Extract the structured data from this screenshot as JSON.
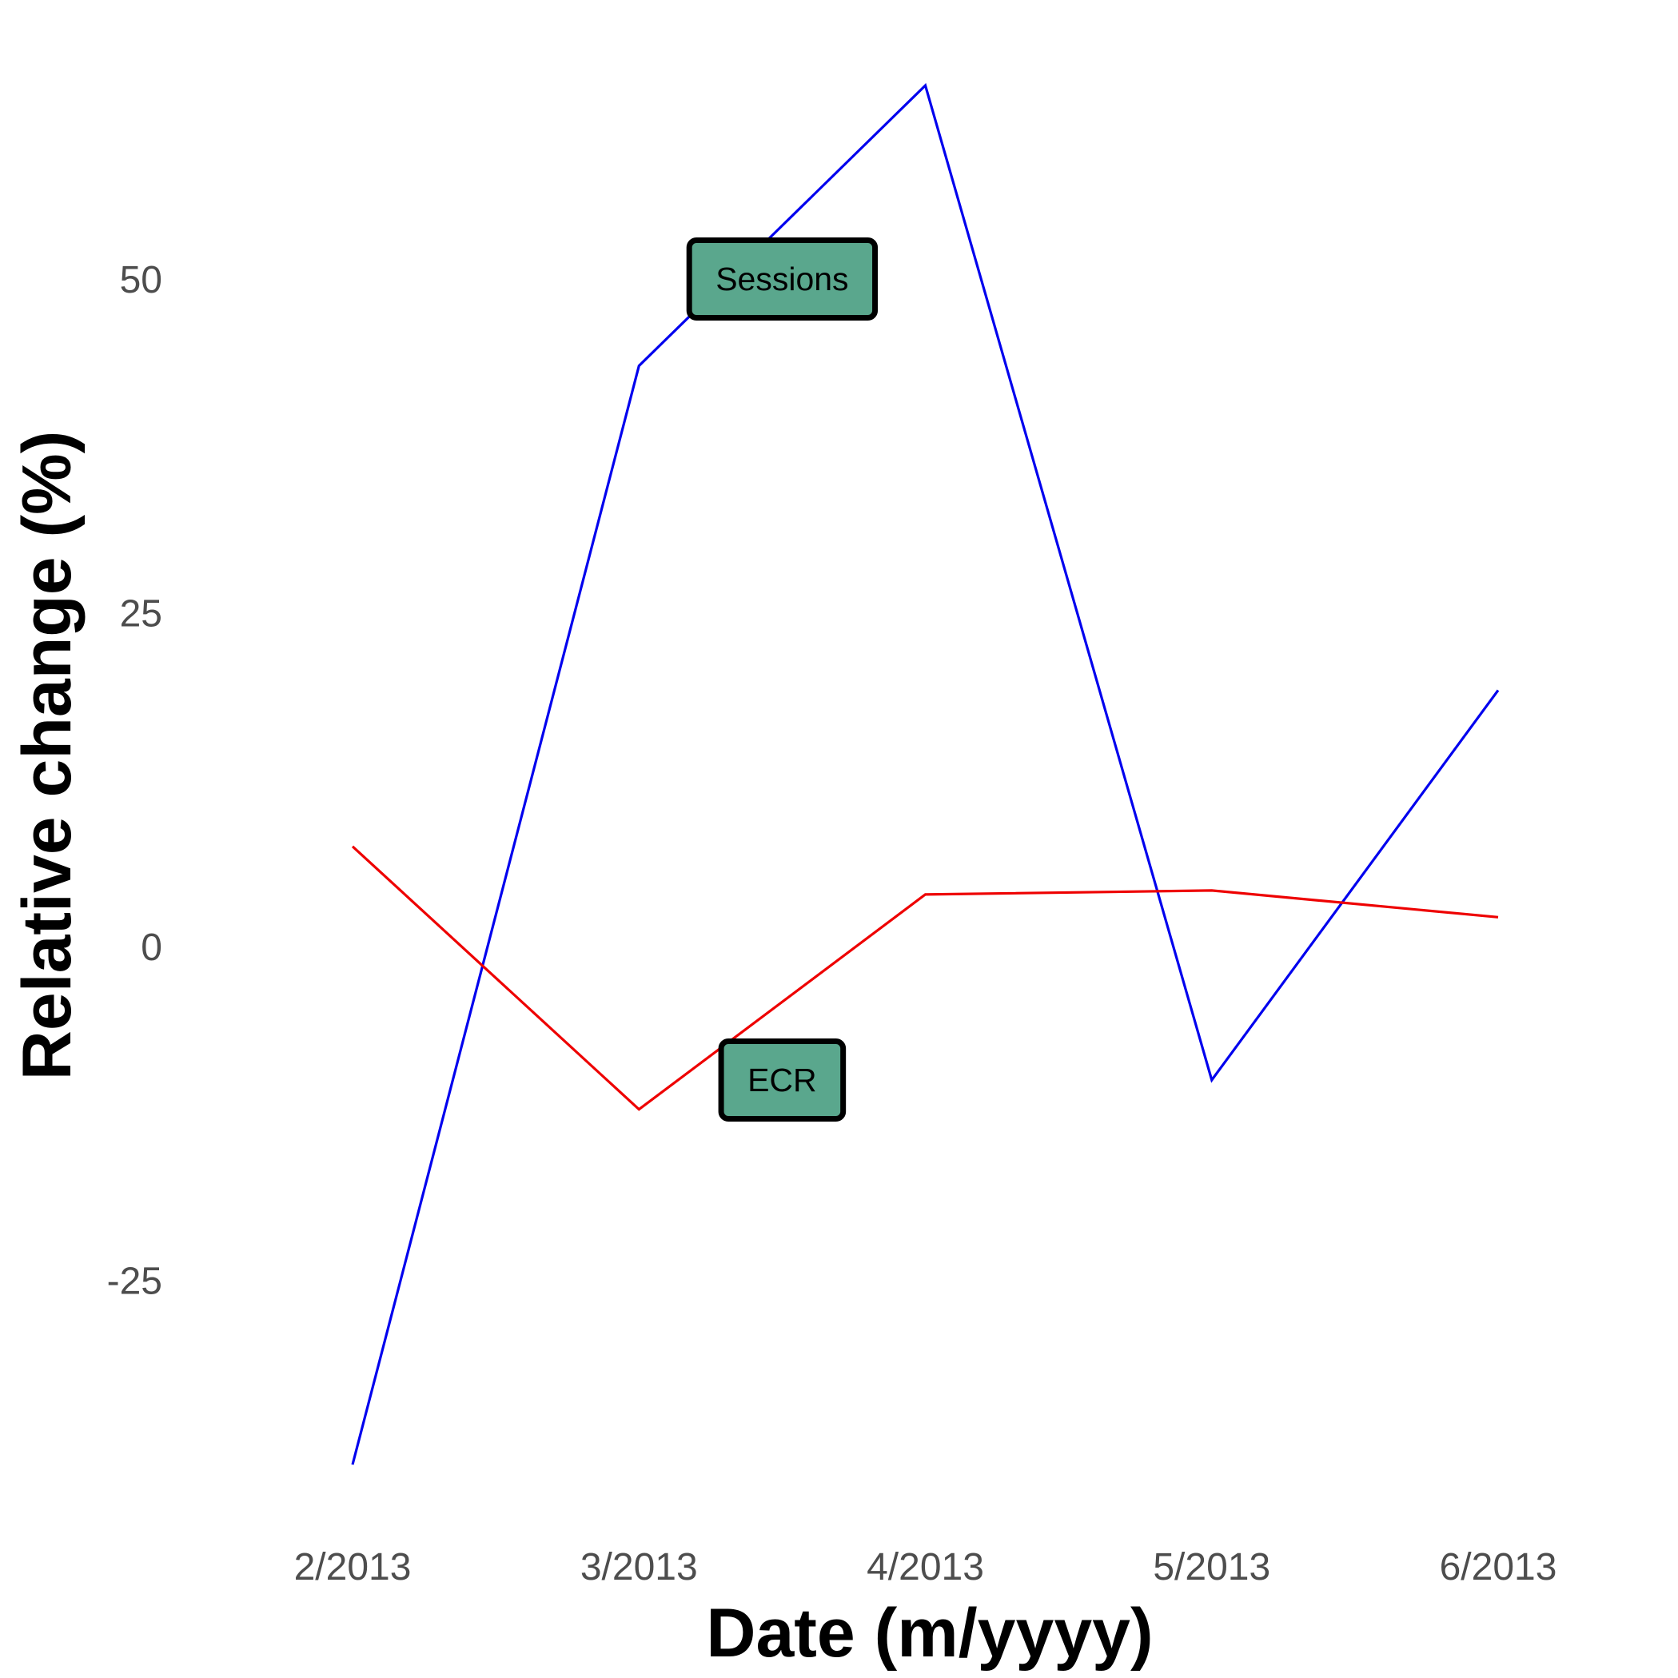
{
  "chart_data": {
    "type": "line",
    "title": "",
    "xlabel": "Date (m/yyyy)",
    "ylabel": "Relative change (%)",
    "categories": [
      "2/2013",
      "3/2013",
      "4/2013",
      "5/2013",
      "6/2013"
    ],
    "y_ticks": [
      {
        "value": 50,
        "label": "50"
      },
      {
        "value": 25,
        "label": "25"
      },
      {
        "value": 0,
        "label": "0"
      },
      {
        "value": -25,
        "label": "-25"
      }
    ],
    "ylim": [
      -41,
      66
    ],
    "grid": false,
    "legend": "none",
    "series": [
      {
        "name": "Sessions",
        "color": "#0000ee",
        "values": [
          -38.8,
          43.5,
          64.5,
          -10.0,
          19.2
        ]
      },
      {
        "name": "ECR",
        "color": "#ee0000",
        "values": [
          7.5,
          -12.2,
          3.9,
          4.2,
          2.2
        ]
      }
    ],
    "annotations": [
      {
        "text": "Sessions",
        "category_index": 1.5,
        "y": 50.0,
        "fill": "#5aa78d"
      },
      {
        "text": "ECR",
        "category_index": 1.5,
        "y": -10.0,
        "fill": "#5aa78d"
      }
    ]
  }
}
